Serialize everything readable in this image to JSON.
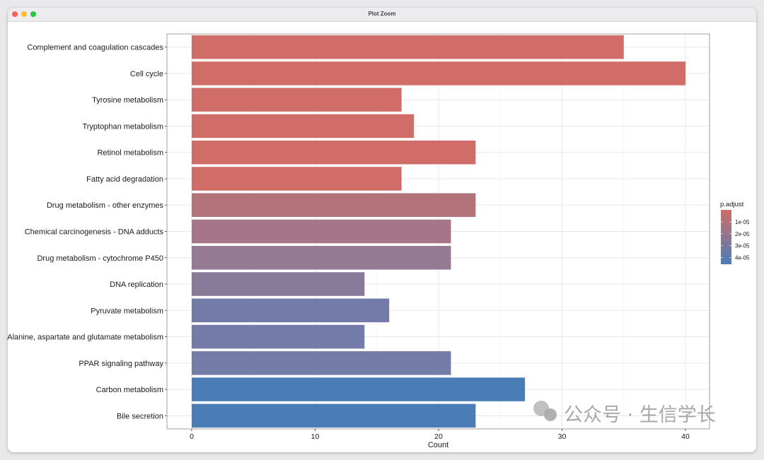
{
  "window": {
    "title": "Plot Zoom"
  },
  "chart_data": {
    "type": "bar",
    "orientation": "horizontal",
    "xlabel": "Count",
    "xlim": [
      -2,
      42
    ],
    "xticks": [
      0,
      10,
      20,
      30,
      40
    ],
    "grid": true,
    "categories": [
      "Complement and coagulation cascades",
      "Cell cycle",
      "Tyrosine metabolism",
      "Tryptophan metabolism",
      "Retinol metabolism",
      "Fatty acid degradation",
      "Drug metabolism - other enzymes",
      "Chemical carcinogenesis - DNA adducts",
      "Drug metabolism - cytochrome P450",
      "DNA replication",
      "Pyruvate metabolism",
      "Alanine, aspartate and glutamate metabolism",
      "PPAR signaling pathway",
      "Carbon metabolism",
      "Bile secretion"
    ],
    "values": [
      35,
      40,
      17,
      18,
      23,
      17,
      23,
      21,
      21,
      14,
      16,
      14,
      21,
      27,
      23
    ],
    "colors": [
      "#D06D68",
      "#D06D68",
      "#D06D68",
      "#D06D68",
      "#D06D68",
      "#D06D68",
      "#B3737B",
      "#A6758A",
      "#967A92",
      "#887A99",
      "#737CA8",
      "#737CA8",
      "#747CA8",
      "#4A7DB5",
      "#4A7DB5"
    ],
    "legend": {
      "title": "p.adjust",
      "position": "right",
      "labels": [
        "1e-05",
        "2e-05",
        "3e-05",
        "4e-05"
      ],
      "color_low": "#D06D68",
      "color_high": "#4A7DB5"
    }
  },
  "watermark": "公众号 · 生信学长"
}
